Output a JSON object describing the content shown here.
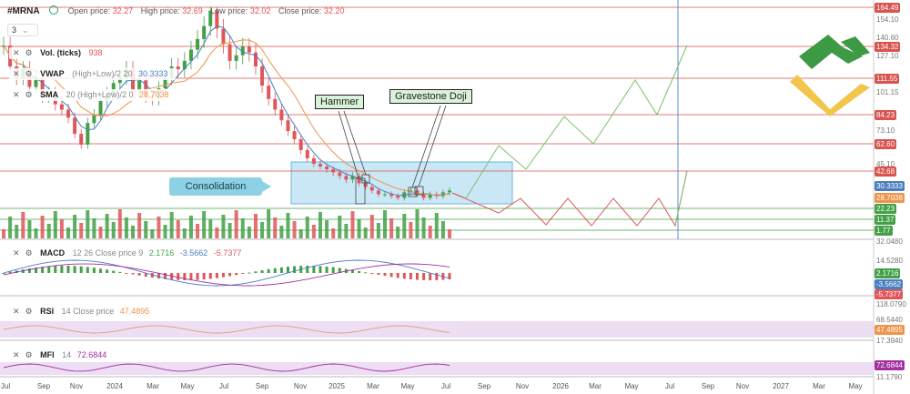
{
  "header": {
    "symbol": "#MRNA",
    "open_label": "Open price:",
    "open": "32.27",
    "high_label": "High price:",
    "high": "32.69",
    "low_label": "Low price:",
    "low": "32.02",
    "close_label": "Close price:",
    "close": "32.20",
    "interval": "3"
  },
  "indicators": {
    "vol": {
      "name": "Vol. (ticks)",
      "value": "938"
    },
    "vwap": {
      "name": "VWAP",
      "params": "(High+Low)/2 20",
      "value": "30.3333"
    },
    "sma": {
      "name": "SMA",
      "params": "20 (High+Low)/2 0",
      "value": "28.7038"
    },
    "macd": {
      "name": "MACD",
      "params": "12 26 Close price 9",
      "v1": "2.1716",
      "v2": "-3.5662",
      "v3": "-5.7377"
    },
    "rsi": {
      "name": "RSI",
      "params": "14 Close price",
      "value": "47.4895"
    },
    "mfi": {
      "name": "MFI",
      "params": "14",
      "value": "72.6844"
    }
  },
  "annotations": {
    "hammer": "Hammer",
    "doji": "Gravestone Doji",
    "consolidation": "Consolidation"
  },
  "colors": {
    "up": "#43a047",
    "down": "#e0565b",
    "level": "#d9534f",
    "vwap": "#4a7ec0",
    "sma": "#f0934a",
    "box": "#9fd3ee"
  },
  "chart_data": [
    {
      "type": "candlestick",
      "title": "#MRNA",
      "x_ticks": [
        "Jul",
        "Sep",
        "Nov",
        "2024",
        "Mar",
        "May",
        "Jul",
        "Sep",
        "Nov",
        "2025",
        "Mar",
        "May",
        "Jul",
        "Sep",
        "Nov",
        "2026",
        "Mar",
        "May",
        "Jul",
        "Sep",
        "Nov",
        "2027",
        "Mar",
        "May"
      ],
      "y_ticks": [
        "154.10",
        "140.60",
        "127.10",
        "101.15",
        "73.10",
        "45.10",
        "32.0480"
      ],
      "ylim": [
        10,
        165
      ],
      "price_levels": [
        {
          "value": 164.49,
          "label": "164.49",
          "color": "#d9534f"
        },
        {
          "value": 134.32,
          "label": "134.32",
          "color": "#d9534f"
        },
        {
          "value": 111.55,
          "label": "111.55",
          "color": "#d9534f"
        },
        {
          "value": 84.23,
          "label": "84.23",
          "color": "#d9534f"
        },
        {
          "value": 62.6,
          "label": "62.60",
          "color": "#d9534f"
        },
        {
          "value": 42.68,
          "label": "42.68",
          "color": "#d9534f"
        },
        {
          "value": 22.23,
          "label": "22.23",
          "color": "#43a047"
        },
        {
          "value": 11.37,
          "label": "11.37",
          "color": "#43a047"
        },
        {
          "value": 1.77,
          "label": "1.77",
          "color": "#43a047"
        }
      ],
      "last_values": [
        {
          "label": "30.3333",
          "color": "#4a7ec0"
        },
        {
          "label": "28.7038",
          "color": "#f0934a"
        }
      ],
      "close_series": [
        135,
        120,
        112,
        118,
        105,
        112,
        98,
        100,
        92,
        88,
        82,
        70,
        62,
        78,
        84,
        95,
        100,
        108,
        112,
        118,
        102,
        110,
        98,
        96,
        104,
        112,
        120,
        118,
        124,
        132,
        140,
        150,
        162,
        148,
        136,
        124,
        128,
        134,
        130,
        120,
        106,
        96,
        88,
        80,
        72,
        66,
        58,
        52,
        48,
        46,
        44,
        42,
        40,
        38,
        40,
        36,
        34,
        32,
        30,
        30,
        29,
        28,
        31,
        32,
        30,
        28,
        30,
        29,
        31,
        32
      ]
    },
    {
      "type": "line",
      "title": "MACD",
      "series": [
        {
          "name": "MACD",
          "last": 2.1716
        },
        {
          "name": "Signal",
          "last": -3.5662
        }
      ],
      "histogram_last": -5.7377,
      "y_ticks": [
        "14.5280"
      ]
    },
    {
      "type": "line",
      "title": "RSI",
      "series": [
        {
          "name": "RSI",
          "last": 47.4895
        }
      ],
      "y_ticks": [
        "118.0790",
        "68.5440",
        "17.3940"
      ]
    },
    {
      "type": "line",
      "title": "MFI",
      "series": [
        {
          "name": "MFI",
          "last": 72.6844
        }
      ],
      "y_ticks": [
        "11.1790"
      ]
    }
  ]
}
